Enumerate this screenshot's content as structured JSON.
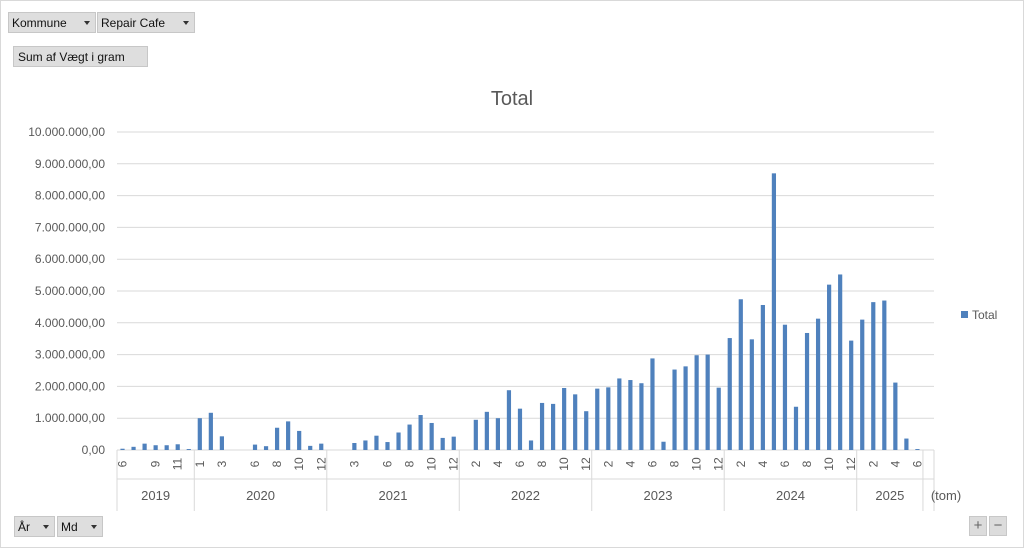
{
  "filters": {
    "kommune_label": "Kommune",
    "repair_label": "Repair Cafe",
    "sum_label": "Sum af Vægt i gram",
    "aar_label": "År",
    "md_label": "Md"
  },
  "zoom": {
    "plus": "+",
    "minus": "−"
  },
  "colors": {
    "bar": "#4f81bd",
    "grid": "#d9d9d9",
    "axis_text": "#595959"
  },
  "chart_data": {
    "type": "bar",
    "title": "Total",
    "legend": {
      "label": "Total",
      "position": "right"
    },
    "ylim": [
      0,
      10000000
    ],
    "yticks": [
      {
        "v": 0,
        "label": "0,00"
      },
      {
        "v": 1000000,
        "label": "1.000.000,00"
      },
      {
        "v": 2000000,
        "label": "2.000.000,00"
      },
      {
        "v": 3000000,
        "label": "3.000.000,00"
      },
      {
        "v": 4000000,
        "label": "4.000.000,00"
      },
      {
        "v": 5000000,
        "label": "5.000.000,00"
      },
      {
        "v": 6000000,
        "label": "6.000.000,00"
      },
      {
        "v": 7000000,
        "label": "7.000.000,00"
      },
      {
        "v": 8000000,
        "label": "8.000.000,00"
      },
      {
        "v": 9000000,
        "label": "9.000.000,00"
      },
      {
        "v": 10000000,
        "label": "10.000.000,00"
      }
    ],
    "grid": true,
    "groups": [
      {
        "year": "2019",
        "months": [
          6,
          7,
          8,
          9,
          10,
          11,
          12
        ],
        "values": [
          40000,
          100000,
          200000,
          150000,
          150000,
          180000,
          30000
        ],
        "labeled_months": [
          6,
          9,
          11
        ]
      },
      {
        "year": "2020",
        "months": [
          1,
          2,
          3,
          4,
          5,
          6,
          7,
          8,
          9,
          10,
          11,
          12
        ],
        "values": [
          1000000,
          1170000,
          430000,
          0,
          0,
          170000,
          120000,
          700000,
          900000,
          600000,
          130000,
          200000
        ],
        "labeled_months": [
          1,
          3,
          6,
          8,
          10,
          12
        ]
      },
      {
        "year": "2021",
        "months": [
          1,
          2,
          3,
          4,
          5,
          6,
          7,
          8,
          9,
          10,
          11,
          12
        ],
        "values": [
          0,
          0,
          220000,
          300000,
          450000,
          250000,
          550000,
          800000,
          1100000,
          850000,
          380000,
          420000
        ],
        "labeled_months": [
          3,
          6,
          8,
          10,
          12
        ]
      },
      {
        "year": "2022",
        "months": [
          1,
          2,
          3,
          4,
          5,
          6,
          7,
          8,
          9,
          10,
          11,
          12
        ],
        "values": [
          0,
          950000,
          1200000,
          1000000,
          1880000,
          1300000,
          300000,
          1480000,
          1450000,
          1950000,
          1750000,
          1220000
        ],
        "labeled_months": [
          2,
          4,
          6,
          8,
          10,
          12
        ]
      },
      {
        "year": "2023",
        "months": [
          1,
          2,
          3,
          4,
          5,
          6,
          7,
          8,
          9,
          10,
          11,
          12
        ],
        "values": [
          1930000,
          1970000,
          2250000,
          2200000,
          2100000,
          2880000,
          260000,
          2530000,
          2630000,
          2980000,
          3000000,
          1960000
        ],
        "labeled_months": [
          2,
          4,
          6,
          8,
          10,
          12
        ]
      },
      {
        "year": "2024",
        "months": [
          1,
          2,
          3,
          4,
          5,
          6,
          7,
          8,
          9,
          10,
          11,
          12
        ],
        "values": [
          3520000,
          4740000,
          3480000,
          4560000,
          8700000,
          3940000,
          1360000,
          3680000,
          4130000,
          5200000,
          5520000,
          3440000
        ],
        "labeled_months": [
          2,
          4,
          6,
          8,
          10,
          12
        ]
      },
      {
        "year": "2025",
        "months": [
          1,
          2,
          3,
          4,
          5,
          6
        ],
        "values": [
          4100000,
          4650000,
          4700000,
          2120000,
          360000,
          30000
        ],
        "labeled_months": [
          2,
          4,
          6
        ]
      },
      {
        "year": "(tom)",
        "months": [
          ""
        ],
        "values": [
          0
        ],
        "labeled_months": []
      }
    ]
  }
}
